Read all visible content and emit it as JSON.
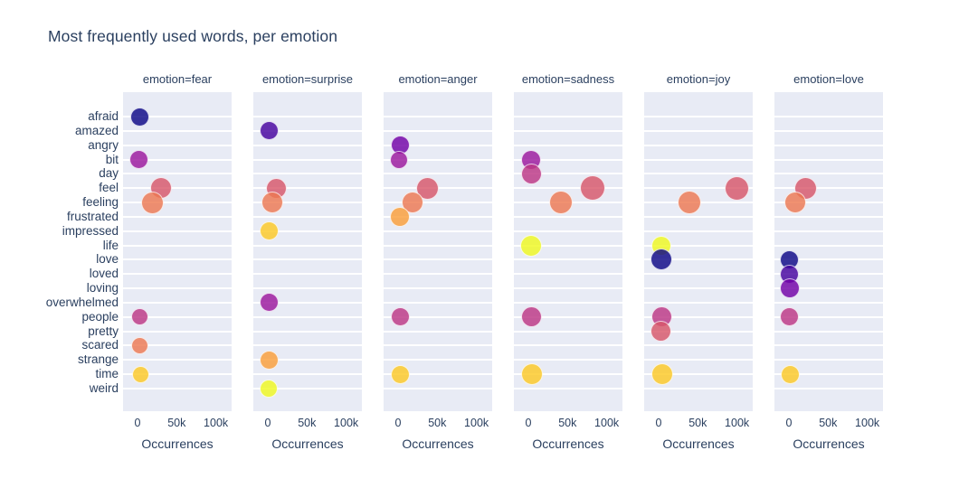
{
  "page": {
    "background": "#ffffff",
    "text_color": "#2a3f5f",
    "panel_background": "#e8ebf5",
    "gridline_color": "#ffffff"
  },
  "chart_data": {
    "type": "scatter",
    "title": "Most frequently used words, per emotion",
    "xlabel": "Occurrences",
    "ylabel": "",
    "x_tick_labels": [
      "0",
      "50k",
      "100k"
    ],
    "x_tick_values": [
      0,
      50000,
      100000
    ],
    "x_range": [
      -18500,
      120000
    ],
    "grid": "horizontal-only, white on light blue panels",
    "legend_position": "none",
    "marker_opacity": 0.82,
    "categories": [
      "afraid",
      "amazed",
      "angry",
      "bit",
      "day",
      "feel",
      "feeling",
      "frustrated",
      "impressed",
      "life",
      "love",
      "loved",
      "loving",
      "overwhelmed",
      "people",
      "pretty",
      "scared",
      "strange",
      "time",
      "weird"
    ],
    "palette_cycle": [
      "#0d0887",
      "#46039f",
      "#7201a8",
      "#9c179e",
      "#bd3786",
      "#d8576b",
      "#ed7953",
      "#fb9f3a",
      "#fdca26",
      "#f0f921"
    ],
    "facets": [
      {
        "label": "emotion=fear",
        "points": [
          {
            "word": "afraid",
            "value": 2500,
            "size": 21
          },
          {
            "word": "bit",
            "value": 2000,
            "size": 21
          },
          {
            "word": "feel",
            "value": 30000,
            "size": 24
          },
          {
            "word": "feeling",
            "value": 19000,
            "size": 25
          },
          {
            "word": "people",
            "value": 2500,
            "size": 19
          },
          {
            "word": "scared",
            "value": 2500,
            "size": 19
          },
          {
            "word": "time",
            "value": 3500,
            "size": 19
          }
        ]
      },
      {
        "label": "emotion=surprise",
        "points": [
          {
            "word": "amazed",
            "value": 1500,
            "size": 21
          },
          {
            "word": "feel",
            "value": 10500,
            "size": 23
          },
          {
            "word": "feeling",
            "value": 6000,
            "size": 24
          },
          {
            "word": "impressed",
            "value": 1500,
            "size": 21
          },
          {
            "word": "overwhelmed",
            "value": 1500,
            "size": 21
          },
          {
            "word": "strange",
            "value": 1500,
            "size": 21
          },
          {
            "word": "weird",
            "value": 1000,
            "size": 20
          }
        ]
      },
      {
        "label": "emotion=anger",
        "points": [
          {
            "word": "angry",
            "value": 2500,
            "size": 21
          },
          {
            "word": "bit",
            "value": 1500,
            "size": 20
          },
          {
            "word": "feel",
            "value": 37000,
            "size": 25
          },
          {
            "word": "feeling",
            "value": 18500,
            "size": 24
          },
          {
            "word": "frustrated",
            "value": 2000,
            "size": 22
          },
          {
            "word": "people",
            "value": 2500,
            "size": 21
          },
          {
            "word": "time",
            "value": 2500,
            "size": 21
          }
        ]
      },
      {
        "label": "emotion=sadness",
        "points": [
          {
            "word": "bit",
            "value": 4000,
            "size": 22
          },
          {
            "word": "day",
            "value": 3500,
            "size": 23
          },
          {
            "word": "feel",
            "value": 82000,
            "size": 28
          },
          {
            "word": "feeling",
            "value": 41000,
            "size": 26
          },
          {
            "word": "life",
            "value": 4000,
            "size": 24
          },
          {
            "word": "people",
            "value": 4000,
            "size": 23
          },
          {
            "word": "time",
            "value": 5000,
            "size": 24
          }
        ]
      },
      {
        "label": "emotion=joy",
        "points": [
          {
            "word": "feel",
            "value": 100000,
            "size": 27
          },
          {
            "word": "feeling",
            "value": 39000,
            "size": 26
          },
          {
            "word": "life",
            "value": 3500,
            "size": 22
          },
          {
            "word": "love",
            "value": 4000,
            "size": 24
          },
          {
            "word": "people",
            "value": 4000,
            "size": 23
          },
          {
            "word": "pretty",
            "value": 3000,
            "size": 23
          },
          {
            "word": "time",
            "value": 5000,
            "size": 24
          }
        ]
      },
      {
        "label": "emotion=love",
        "points": [
          {
            "word": "feel",
            "value": 21000,
            "size": 25
          },
          {
            "word": "feeling",
            "value": 8500,
            "size": 24
          },
          {
            "word": "love",
            "value": 1000,
            "size": 21
          },
          {
            "word": "loved",
            "value": 1000,
            "size": 21
          },
          {
            "word": "loving",
            "value": 1000,
            "size": 22
          },
          {
            "word": "people",
            "value": 1000,
            "size": 21
          },
          {
            "word": "time",
            "value": 1500,
            "size": 21
          }
        ]
      }
    ]
  }
}
